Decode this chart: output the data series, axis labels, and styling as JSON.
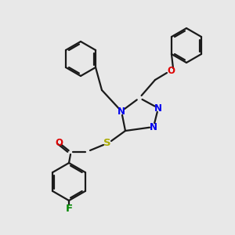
{
  "background_color": "#e8e8e8",
  "bond_color": "#1a1a1a",
  "atom_colors": {
    "N": "#0000ee",
    "O": "#dd0000",
    "S": "#aaaa00",
    "F": "#008800",
    "C": "#1a1a1a"
  },
  "lw": 1.6,
  "fs": 8.5,
  "figsize": [
    3.0,
    3.0
  ],
  "dpi": 100
}
